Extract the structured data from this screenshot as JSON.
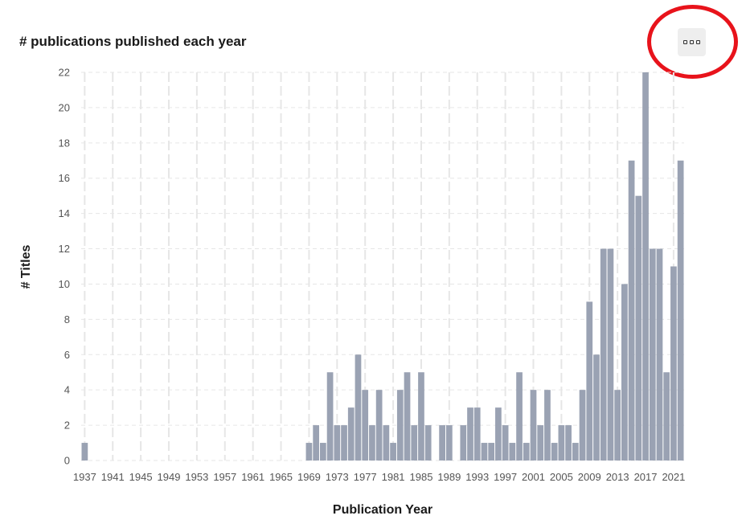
{
  "colors": {
    "bar": "#9aa2b3",
    "grid": "#e6e6e6",
    "highlight": "#e8131b",
    "text": "#1a1a1a",
    "tick": "#555555"
  },
  "menu": {
    "icon": "more-options-icon"
  },
  "chart_data": {
    "type": "bar",
    "title": "# publications published each year",
    "xlabel": "Publication Year",
    "ylabel": "# Titles",
    "ylim": [
      0,
      22
    ],
    "yticks": [
      0,
      2,
      4,
      6,
      8,
      10,
      12,
      14,
      16,
      18,
      20,
      22
    ],
    "xtick_labels": [
      "1937",
      "1941",
      "1945",
      "1949",
      "1953",
      "1957",
      "1961",
      "1965",
      "1969",
      "1973",
      "1977",
      "1981",
      "1985",
      "1989",
      "1993",
      "1997",
      "2001",
      "2005",
      "2009",
      "2013",
      "2017",
      "2021"
    ],
    "grid": "dashed horizontal and vertical",
    "legend": "none",
    "x": [
      1937,
      1938,
      1939,
      1940,
      1941,
      1942,
      1943,
      1944,
      1945,
      1946,
      1947,
      1948,
      1949,
      1950,
      1951,
      1952,
      1953,
      1954,
      1955,
      1956,
      1957,
      1958,
      1959,
      1960,
      1961,
      1962,
      1963,
      1964,
      1965,
      1966,
      1967,
      1968,
      1969,
      1970,
      1971,
      1972,
      1973,
      1974,
      1975,
      1976,
      1977,
      1978,
      1979,
      1980,
      1981,
      1982,
      1983,
      1984,
      1985,
      1986,
      1987,
      1988,
      1989,
      1990,
      1991,
      1992,
      1993,
      1994,
      1995,
      1996,
      1997,
      1998,
      1999,
      2000,
      2001,
      2002,
      2003,
      2004,
      2005,
      2006,
      2007,
      2008,
      2009,
      2010,
      2011,
      2012,
      2013,
      2014,
      2015,
      2016,
      2017,
      2018,
      2019,
      2020,
      2021,
      2022
    ],
    "values": [
      1,
      0,
      0,
      0,
      0,
      0,
      0,
      0,
      0,
      0,
      0,
      0,
      0,
      0,
      0,
      0,
      0,
      0,
      0,
      0,
      0,
      0,
      0,
      0,
      0,
      0,
      0,
      0,
      0,
      0,
      0,
      0,
      1,
      2,
      1,
      5,
      2,
      2,
      3,
      6,
      4,
      2,
      4,
      2,
      1,
      4,
      5,
      2,
      5,
      2,
      0,
      2,
      2,
      0,
      2,
      3,
      3,
      1,
      1,
      3,
      2,
      1,
      5,
      1,
      4,
      2,
      4,
      1,
      2,
      2,
      1,
      4,
      9,
      6,
      12,
      12,
      4,
      10,
      17,
      15,
      22,
      12,
      12,
      5,
      11,
      17
    ]
  }
}
